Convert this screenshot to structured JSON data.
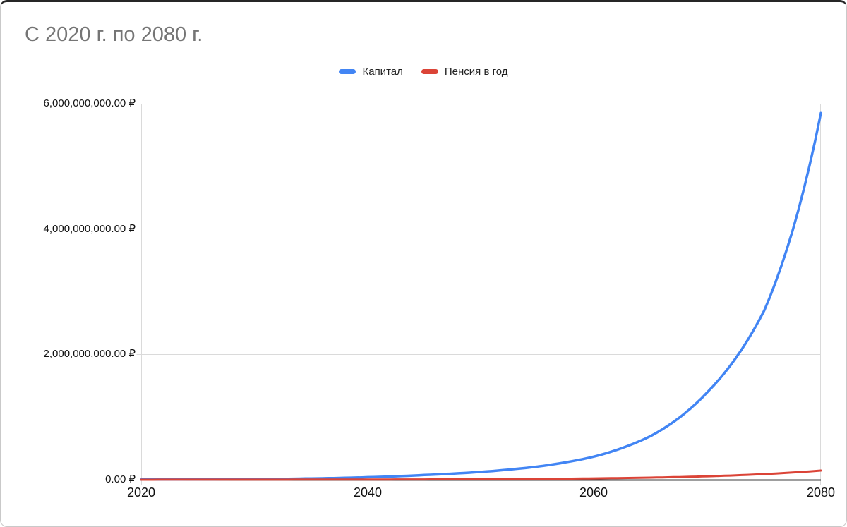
{
  "chart": {
    "title": "С 2020 г. по 2080 г.",
    "legend": {
      "items": [
        {
          "label": "Капитал",
          "color": "#4285f4"
        },
        {
          "label": "Пенсия в год",
          "color": "#db4437"
        }
      ]
    },
    "y_axis": {
      "tick_labels": [
        "6,000,000,000.00 ₽",
        "4,000,000,000.00 ₽",
        "2,000,000,000.00 ₽",
        "0.00 ₽"
      ]
    },
    "x_axis": {
      "tick_labels": [
        "2020",
        "2040",
        "2060",
        "2080"
      ]
    }
  },
  "chart_data": {
    "type": "line",
    "title": "С 2020 г. по 2080 г.",
    "x": [
      2020,
      2025,
      2030,
      2035,
      2040,
      2045,
      2050,
      2055,
      2060,
      2065,
      2070,
      2075,
      2080
    ],
    "series": [
      {
        "name": "Капитал",
        "color": "#4285f4",
        "values": [
          2000000,
          5000000,
          10000000,
          20000000,
          40000000,
          75000000,
          125000000,
          210000000,
          370000000,
          700000000,
          1400000000,
          2700000000,
          5850000000
        ]
      },
      {
        "name": "Пенсия в год",
        "color": "#db4437",
        "values": [
          500000,
          800000,
          1200000,
          2000000,
          3200000,
          5000000,
          8000000,
          13000000,
          21000000,
          34000000,
          55000000,
          90000000,
          146000000
        ]
      }
    ],
    "xlim": [
      2020,
      2080
    ],
    "ylim": [
      0,
      6000000000
    ],
    "x_ticks": [
      2020,
      2040,
      2060,
      2080
    ],
    "y_ticks": [
      0,
      2000000000,
      4000000000,
      6000000000
    ],
    "y_tick_format": "#,##0.00 ₽",
    "grid": true,
    "legend_position": "top-center"
  }
}
